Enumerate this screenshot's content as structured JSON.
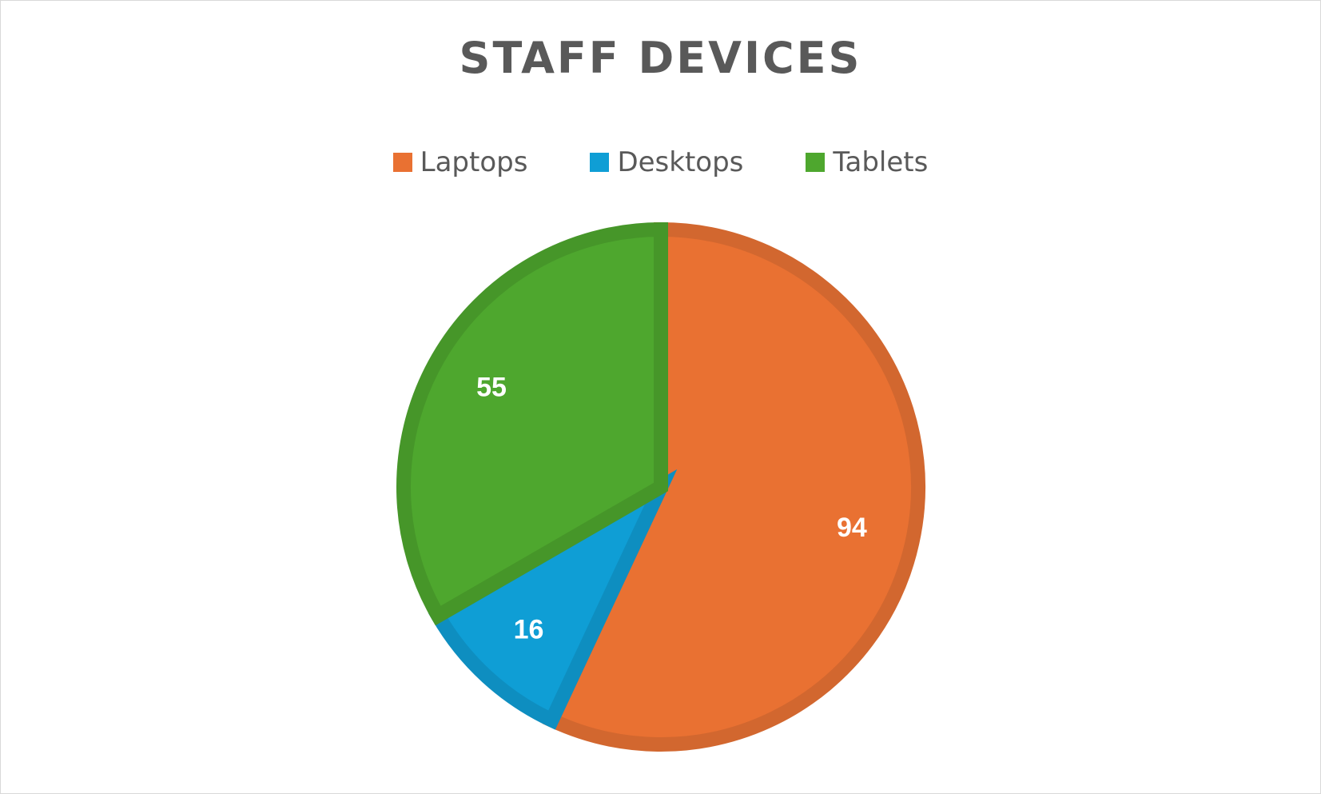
{
  "chart_data": {
    "type": "pie",
    "title": "STAFF DEVICES",
    "categories": [
      "Laptops",
      "Desktops",
      "Tablets"
    ],
    "values": [
      94,
      16,
      55
    ],
    "colors": [
      "#E97132",
      "#0F9ED5",
      "#4EA72E"
    ],
    "border_colors": [
      "#D2672F",
      "#0E8EC0",
      "#469629"
    ],
    "legend": "top",
    "data_labels": true
  }
}
